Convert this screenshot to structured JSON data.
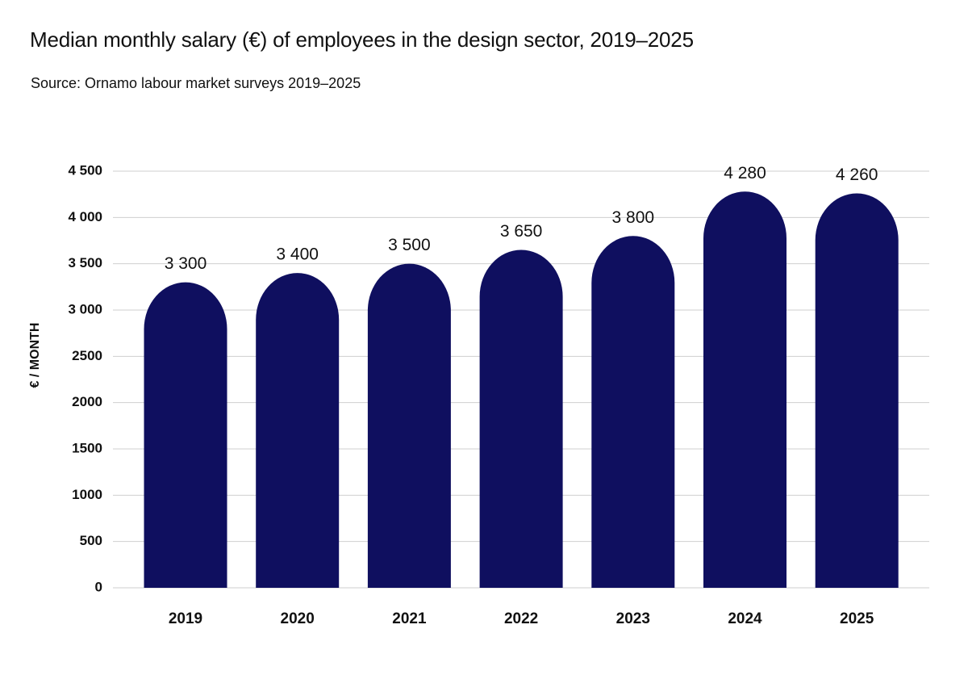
{
  "chart_data": {
    "type": "bar",
    "title": "Median monthly salary (€) of employees in the design sector, 2019–2025",
    "subtitle": "Source: Ornamo labour market surveys 2019–2025",
    "xlabel": "",
    "ylabel": "€ / MONTH",
    "ylim": [
      0,
      4500
    ],
    "yticks": [
      0,
      500,
      1000,
      1500,
      2000,
      2500,
      3000,
      3500,
      4000,
      4500
    ],
    "ytick_labels": [
      "0",
      "500",
      "1000",
      "1500",
      "2000",
      "2500",
      "3 000",
      "3 500",
      "4 000",
      "4 500"
    ],
    "categories": [
      "2019",
      "2020",
      "2021",
      "2022",
      "2023",
      "2024",
      "2025"
    ],
    "values": [
      3300,
      3400,
      3500,
      3650,
      3800,
      4280,
      4260
    ],
    "value_labels": [
      "3 300",
      "3 400",
      "3 500",
      "3 650",
      "3 800",
      "4 280",
      "4 260"
    ],
    "grid": true,
    "legend": "none",
    "bar_color": "#0f0f5f",
    "grid_color": "#cfcfcf"
  }
}
